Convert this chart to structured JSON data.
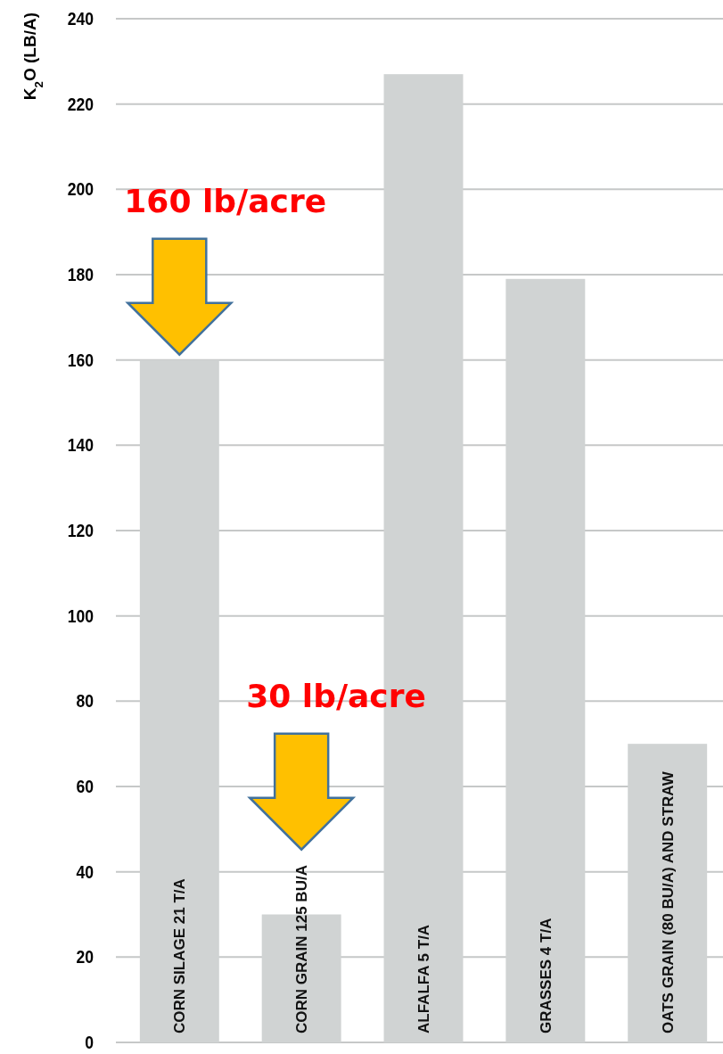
{
  "chart_data": {
    "type": "bar",
    "ylabel": "K$_{2}$O (LB/A)",
    "categories": [
      "CORN SILAGE 21 T/A",
      "CORN GRAIN 125 BU/A",
      "ALFALFA 5 T/A",
      "GRASSES 4 T/A",
      "OATS GRAIN (80 BU/A) AND STRAW"
    ],
    "values": [
      160,
      30,
      227,
      179,
      70
    ],
    "color": "#d0d3d3",
    "ylim": [
      0,
      240
    ],
    "yticks": [
      0,
      20,
      40,
      60,
      80,
      100,
      120,
      140,
      160,
      180,
      200,
      220,
      240
    ],
    "grid": "y",
    "annotations": [
      "160 lb/acre",
      "30 lb/acre"
    ]
  }
}
